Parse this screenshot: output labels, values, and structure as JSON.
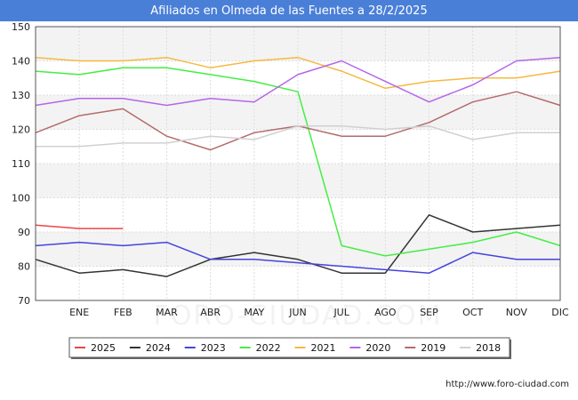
{
  "header": {
    "title": "Afiliados en Olmeda de las Fuentes a 28/2/2025"
  },
  "footer": {
    "url": "http://www.foro-ciudad.com"
  },
  "watermark": {
    "text": "FORO-CIUDAD.COM"
  },
  "chart_data": {
    "type": "line",
    "title": "Afiliados en Olmeda de las Fuentes a 28/2/2025",
    "categories": [
      "",
      "ENE",
      "FEB",
      "MAR",
      "ABR",
      "MAY",
      "JUN",
      "JUL",
      "AGO",
      "SEP",
      "OCT",
      "NOV",
      "DIC"
    ],
    "ylim": [
      70,
      150
    ],
    "yticks": [
      70,
      80,
      90,
      100,
      110,
      120,
      130,
      140,
      150
    ],
    "grid": true,
    "legend_position": "bottom",
    "series": [
      {
        "name": "2025",
        "color": "#ee4444",
        "values": [
          92,
          91,
          91,
          null,
          null,
          null,
          null,
          null,
          null,
          null,
          null,
          null,
          null
        ]
      },
      {
        "name": "2024",
        "color": "#333333",
        "values": [
          82,
          78,
          79,
          77,
          82,
          84,
          82,
          78,
          78,
          95,
          90,
          91,
          92
        ]
      },
      {
        "name": "2023",
        "color": "#4444dd",
        "values": [
          86,
          87,
          86,
          87,
          82,
          82,
          81,
          80,
          79,
          78,
          84,
          82,
          82
        ]
      },
      {
        "name": "2022",
        "color": "#44ee44",
        "values": [
          137,
          136,
          138,
          138,
          136,
          134,
          131,
          86,
          83,
          85,
          87,
          90,
          86
        ]
      },
      {
        "name": "2021",
        "color": "#f5b942",
        "values": [
          141,
          140,
          140,
          141,
          138,
          140,
          141,
          137,
          132,
          134,
          135,
          135,
          137
        ]
      },
      {
        "name": "2020",
        "color": "#b566e8",
        "values": [
          127,
          129,
          129,
          127,
          129,
          128,
          136,
          140,
          134,
          128,
          133,
          140,
          141
        ]
      },
      {
        "name": "2019",
        "color": "#b56b6b",
        "values": [
          119,
          124,
          126,
          118,
          114,
          119,
          121,
          118,
          118,
          122,
          128,
          131,
          127
        ]
      },
      {
        "name": "2018",
        "color": "#d0d0d0",
        "values": [
          115,
          115,
          116,
          116,
          118,
          117,
          121,
          121,
          120,
          121,
          117,
          119,
          119
        ]
      }
    ]
  }
}
